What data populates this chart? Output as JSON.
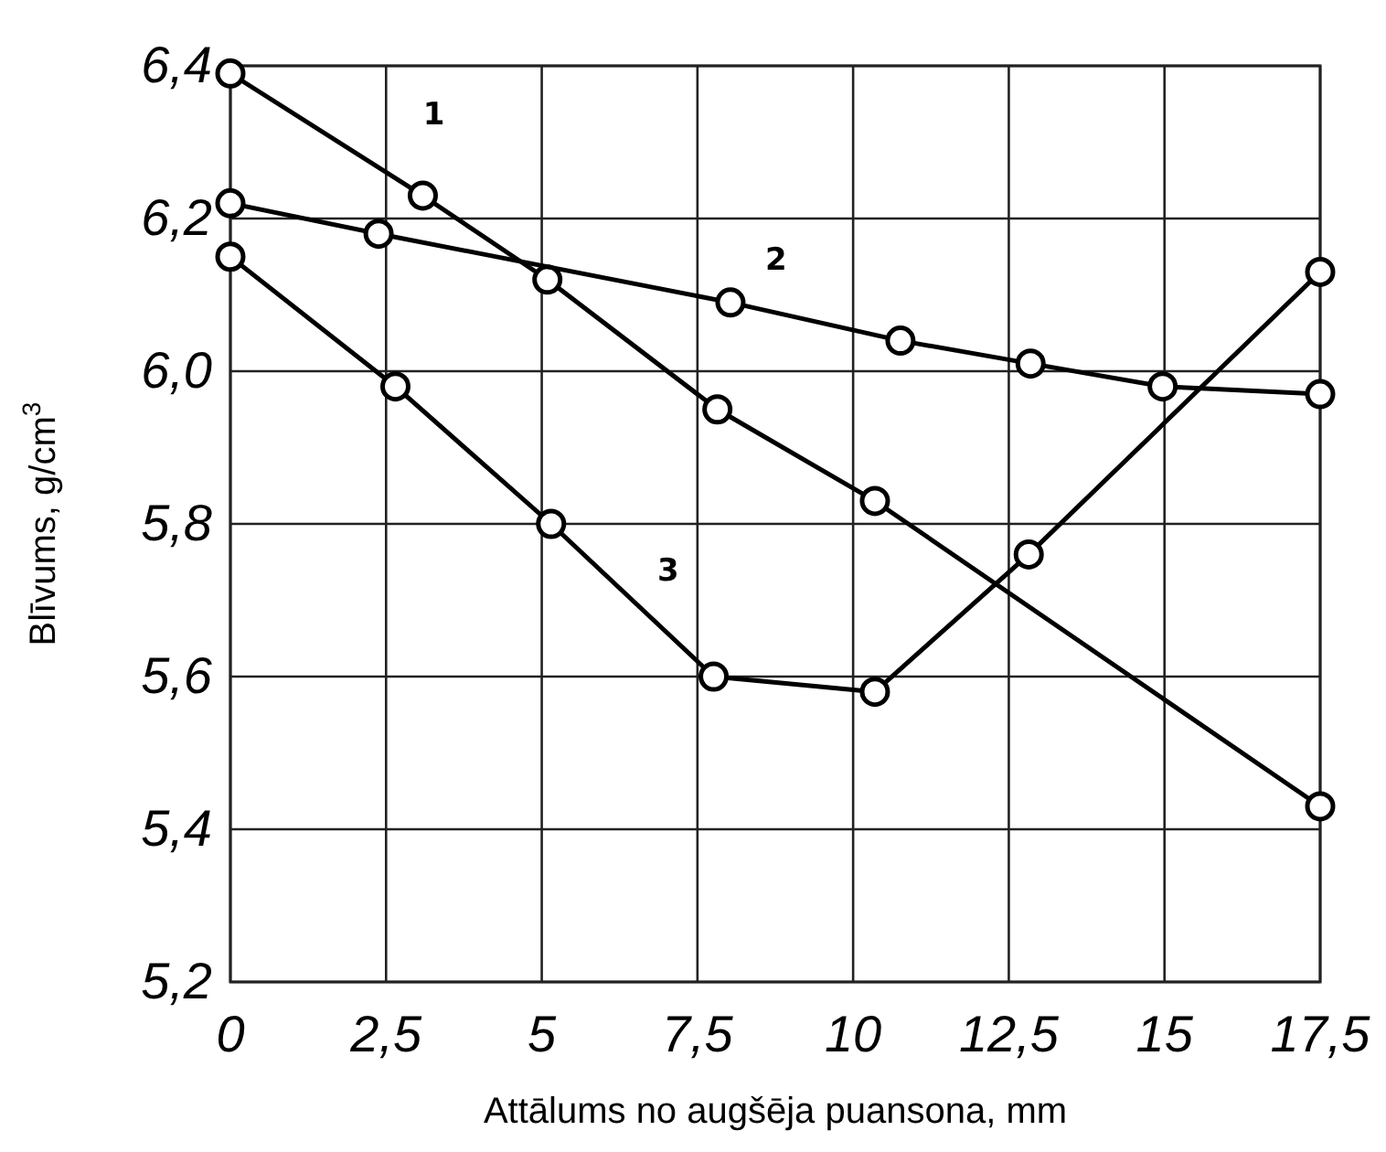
{
  "chart_data": {
    "type": "line",
    "xlabel": "Attālums no augšēja puansona, mm",
    "ylabel": "Blīvums, g/cm$^{3}$",
    "xlim": [
      0,
      17.5
    ],
    "ylim": [
      5.2,
      6.4
    ],
    "xticks": [
      0,
      {
        "value": 2.5,
        "label": "2,5"
      },
      5,
      {
        "value": 7.5,
        "label": "7,5"
      },
      10,
      {
        "value": 12.5,
        "label": "12,5"
      },
      15,
      {
        "value": 17.5,
        "label": "17,5"
      }
    ],
    "yticks": [
      {
        "value": 5.2,
        "label": "5,2"
      },
      {
        "value": 5.4,
        "label": "5,4"
      },
      {
        "value": 5.6,
        "label": "5,6"
      },
      {
        "value": 5.8,
        "label": "5,8"
      },
      {
        "value": 6.0,
        "label": "6,0"
      },
      {
        "value": 6.2,
        "label": "6,2"
      },
      {
        "value": 6.4,
        "label": "6,4"
      }
    ],
    "grid": true,
    "marker": "circle",
    "line_style": "solid",
    "series": [
      {
        "name": "1",
        "color": "#000000",
        "x": [
          0,
          3.09,
          5.09,
          7.82,
          10.35,
          17.5
        ],
        "values": [
          6.39,
          6.23,
          6.12,
          5.95,
          5.83,
          5.43
        ]
      },
      {
        "name": "2",
        "color": "#000000",
        "x": [
          0,
          2.38,
          8.03,
          10.76,
          12.85,
          14.97,
          17.5
        ],
        "values": [
          6.22,
          6.18,
          6.09,
          6.04,
          6.01,
          5.98,
          5.97
        ]
      },
      {
        "name": "3",
        "color": "#000000",
        "x": [
          0,
          2.65,
          5.15,
          7.76,
          10.35,
          12.82,
          17.5
        ],
        "values": [
          6.15,
          5.98,
          5.8,
          5.6,
          5.58,
          5.76,
          6.13
        ]
      }
    ]
  }
}
